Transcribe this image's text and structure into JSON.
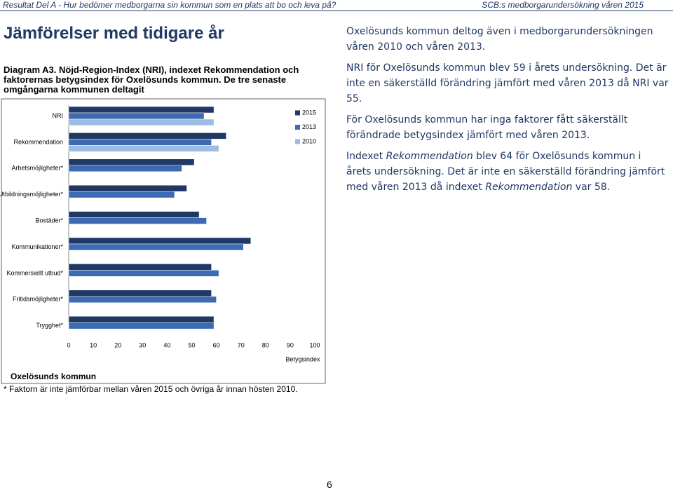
{
  "header": {
    "left": "Resultat Del A - Hur bedömer medborgarna sin kommun som en plats att bo och leva på?",
    "right": "SCB:s medborgarundersökning våren 2015"
  },
  "title": "Jämförelser med tidigare år",
  "chart_data": {
    "type": "bar",
    "orientation": "horizontal",
    "caption": "Diagram A3. Nöjd-Region-Index (NRI), indexet Rekommendation och faktorernas betygsindex för Oxelösunds kommun. De tre senaste omgångarna kommunen deltagit",
    "subtitle": "Oxelösunds kommun",
    "x_label": "Betygsindex",
    "categories": [
      "NRI",
      "Rekommendation",
      "Arbetsmöjligheter*",
      "Utbildningsmöjligheter*",
      "Bostäder*",
      "Kommunikationer*",
      "Kommersiellt utbud*",
      "Fritidsmöjligheter*",
      "Trygghet*"
    ],
    "series": [
      {
        "name": "2015",
        "color": "#1f3864",
        "values": [
          59,
          64,
          51,
          48,
          53,
          74,
          58,
          58,
          59
        ]
      },
      {
        "name": "2013",
        "color": "#3d6bb3",
        "values": [
          55,
          58,
          46,
          43,
          56,
          71,
          61,
          60,
          59
        ]
      },
      {
        "name": "2010",
        "color": "#9dbbe3",
        "values": [
          59,
          61,
          null,
          null,
          null,
          null,
          null,
          null,
          null
        ]
      }
    ],
    "xlim": [
      0,
      100
    ],
    "xticks": [
      0,
      10,
      20,
      30,
      40,
      50,
      60,
      70,
      80,
      90,
      100
    ]
  },
  "footnote": "* Faktorn är inte jämförbar mellan våren 2015 och övriga år innan hösten 2010.",
  "paragraphs": [
    "Oxelösunds kommun deltog även i medborgarundersökningen våren 2010 och våren 2013.",
    "NRI för Oxelösunds kommun blev 59 i årets undersökning. Det är inte en säkerställd förändring jämfört med våren 2013 då NRI var 55.",
    "För Oxelösunds kommun har inga faktorer fått säkerställt förändrade betygsindex jämfört med våren 2013.",
    [
      "Indexet ",
      "Rekommendation",
      " blev 64 för Oxelösunds kommun i årets undersökning. Det är inte en säkerställd förändring jämfört med våren 2013 då indexet ",
      "Rekommendation",
      " var 58."
    ]
  ],
  "page_number": "6"
}
